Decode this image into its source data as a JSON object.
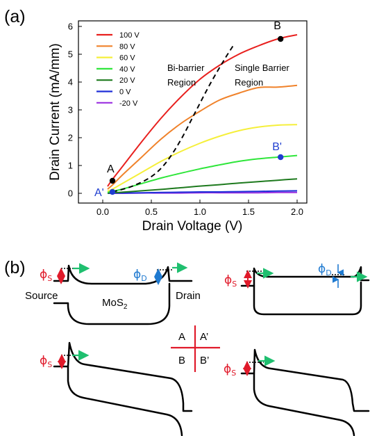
{
  "figure": {
    "panel_a_label": "(a)",
    "panel_b_label": "(b)"
  },
  "chart_data": {
    "type": "line",
    "xlabel": "Drain Voltage (V)",
    "ylabel": "Drain Current (mA/mm)",
    "xlim": [
      -0.25,
      2.1
    ],
    "ylim": [
      -0.35,
      6.2
    ],
    "xticks": [
      0.0,
      0.5,
      1.0,
      1.5,
      2.0
    ],
    "xtick_labels": [
      "0.0",
      "0.5",
      "1.0",
      "1.5",
      "2.0"
    ],
    "yticks": [
      0,
      1,
      2,
      3,
      4,
      5,
      6
    ],
    "ytick_labels": [
      "0",
      "1",
      "2",
      "3",
      "4",
      "5",
      "6"
    ],
    "grid": false,
    "legend_position": "top-left",
    "x": [
      0.05,
      0.1,
      0.2,
      0.4,
      0.6,
      0.8,
      1.0,
      1.2,
      1.4,
      1.6,
      1.8,
      2.0
    ],
    "series": [
      {
        "name": "100 V",
        "color": "#e8201e",
        "values": [
          0.25,
          0.5,
          0.95,
          1.85,
          2.7,
          3.45,
          4.1,
          4.6,
          5.0,
          5.3,
          5.55,
          5.7
        ]
      },
      {
        "name": "80 V",
        "color": "#f0822a",
        "values": [
          0.15,
          0.3,
          0.65,
          1.3,
          1.95,
          2.5,
          2.95,
          3.35,
          3.6,
          3.8,
          3.82,
          3.88
        ]
      },
      {
        "name": "60 V",
        "color": "#f5ef3a",
        "values": [
          0.08,
          0.15,
          0.35,
          0.75,
          1.15,
          1.5,
          1.8,
          2.05,
          2.25,
          2.38,
          2.45,
          2.47
        ]
      },
      {
        "name": "40 V",
        "color": "#2ee63a",
        "values": [
          0.04,
          0.07,
          0.15,
          0.35,
          0.55,
          0.72,
          0.88,
          1.02,
          1.15,
          1.24,
          1.3,
          1.36
        ]
      },
      {
        "name": "20 V",
        "color": "#1e7a1e",
        "values": [
          0.01,
          0.02,
          0.04,
          0.09,
          0.14,
          0.2,
          0.26,
          0.31,
          0.37,
          0.42,
          0.47,
          0.52
        ]
      },
      {
        "name": "0 V",
        "color": "#1f2fd8",
        "values": [
          0.0,
          0.01,
          0.01,
          0.02,
          0.03,
          0.04,
          0.05,
          0.05,
          0.06,
          0.07,
          0.08,
          0.09
        ]
      },
      {
        "name": "-20 V",
        "color": "#9b30e0",
        "values": [
          0.0,
          0.0,
          0.0,
          0.01,
          0.01,
          0.01,
          0.02,
          0.02,
          0.02,
          0.02,
          0.03,
          0.03
        ]
      }
    ],
    "boundary": {
      "x": [
        0.1,
        0.3,
        0.5,
        0.65,
        0.8,
        0.95,
        1.1,
        1.25,
        1.35
      ],
      "y": [
        0.05,
        0.25,
        0.6,
        1.1,
        1.9,
        2.9,
        3.9,
        4.8,
        5.35
      ]
    },
    "points": [
      {
        "label": "A",
        "x": 0.1,
        "y": 0.45,
        "color": "#000000"
      },
      {
        "label": "B",
        "x": 1.83,
        "y": 5.55,
        "color": "#000000"
      },
      {
        "label": "A'",
        "x": 0.1,
        "y": 0.05,
        "color": "#1f3ed0"
      },
      {
        "label": "B'",
        "x": 1.83,
        "y": 1.3,
        "color": "#1f3ed0"
      }
    ],
    "annotations": {
      "bi_barrier_line1": "Bi-barrier",
      "bi_barrier_line2": "Region",
      "single_barrier_line1": "Single Barrier",
      "single_barrier_line2": "Region"
    }
  },
  "diagrams": {
    "phi_s": "ϕ",
    "phi_s_sub": "S",
    "phi_d": "ϕ",
    "phi_d_sub": "D",
    "source_label": "Source",
    "drain_label": "Drain",
    "material": "MoS",
    "material_sub": "2",
    "key": {
      "top_left": "A",
      "top_right": "A’",
      "bottom_left": "B",
      "bottom_right": "B’"
    },
    "colors": {
      "phi_s": "#e01a2a",
      "phi_d": "#1f7ad0",
      "green_arrow": "#1fbf6f",
      "key_lines": "#e01a2a"
    }
  }
}
